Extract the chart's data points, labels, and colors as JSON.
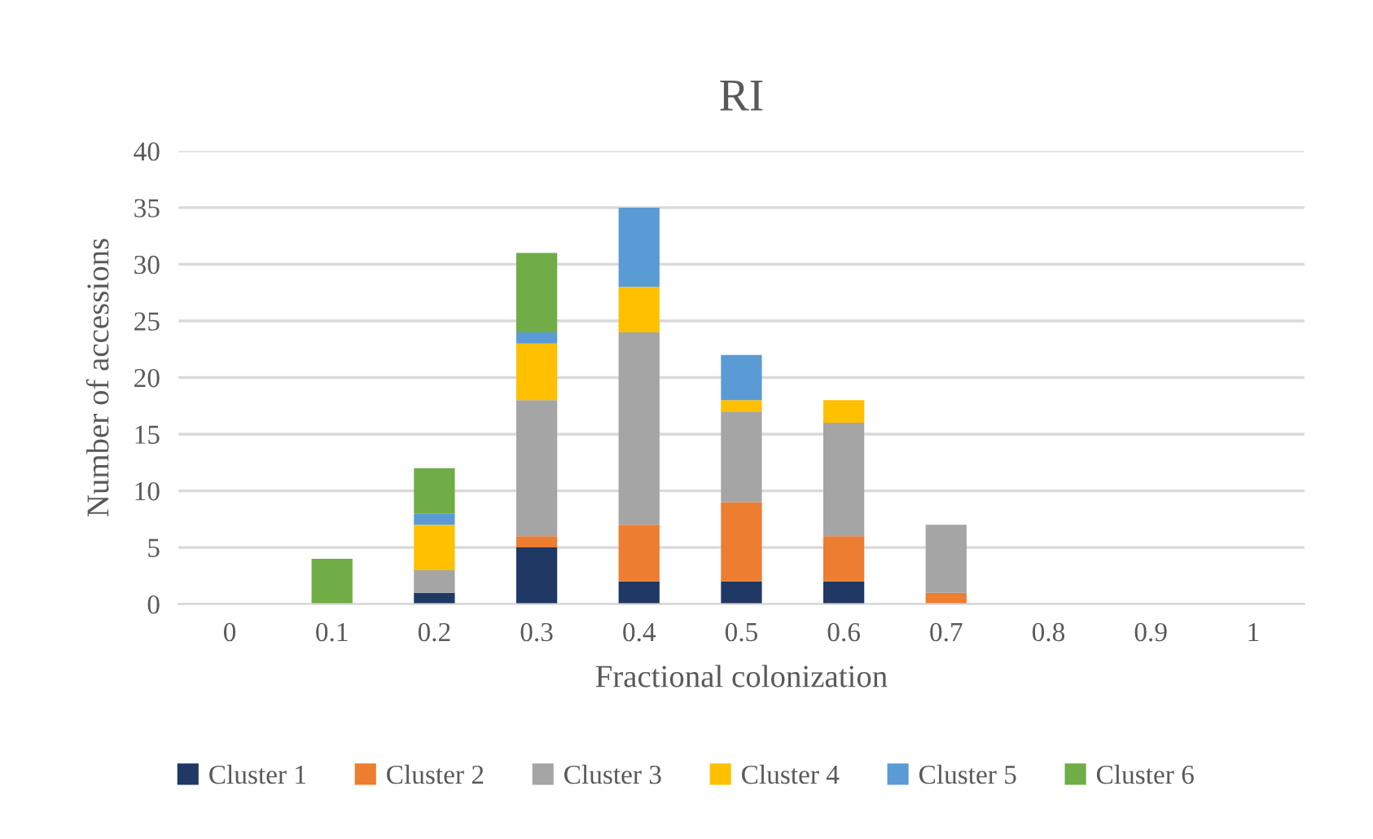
{
  "chart_data": {
    "type": "bar",
    "title": "RI",
    "xlabel": "Fractional colonization",
    "ylabel": "Number of accessions",
    "categories": [
      "0",
      "0.1",
      "0.2",
      "0.3",
      "0.4",
      "0.5",
      "0.6",
      "0.7",
      "0.8",
      "0.9",
      "1"
    ],
    "stacked": true,
    "series": [
      {
        "name": "Cluster 1",
        "color": "#203864",
        "values": [
          0,
          0,
          1,
          5,
          2,
          2,
          2,
          0,
          0,
          0,
          0
        ]
      },
      {
        "name": "Cluster 2",
        "color": "#ed7d31",
        "values": [
          0,
          0,
          0,
          1,
          5,
          7,
          4,
          1,
          0,
          0,
          0
        ]
      },
      {
        "name": "Cluster 3",
        "color": "#a5a5a5",
        "values": [
          0,
          0,
          2,
          12,
          17,
          8,
          10,
          6,
          0,
          0,
          0
        ]
      },
      {
        "name": "Cluster 4",
        "color": "#ffc000",
        "values": [
          0,
          0,
          4,
          5,
          4,
          1,
          2,
          0,
          0,
          0,
          0
        ]
      },
      {
        "name": "Cluster 5",
        "color": "#5b9bd5",
        "values": [
          0,
          0,
          1,
          1,
          7,
          4,
          0,
          0,
          0,
          0,
          0
        ]
      },
      {
        "name": "Cluster 6",
        "color": "#70ad47",
        "values": [
          0,
          4,
          4,
          7,
          0,
          0,
          0,
          0,
          0,
          0,
          0
        ]
      }
    ],
    "ylim": [
      0,
      40
    ],
    "yticks": [
      0,
      5,
      10,
      15,
      20,
      25,
      30,
      35,
      40
    ],
    "grid": "y",
    "legend": "bottom"
  }
}
